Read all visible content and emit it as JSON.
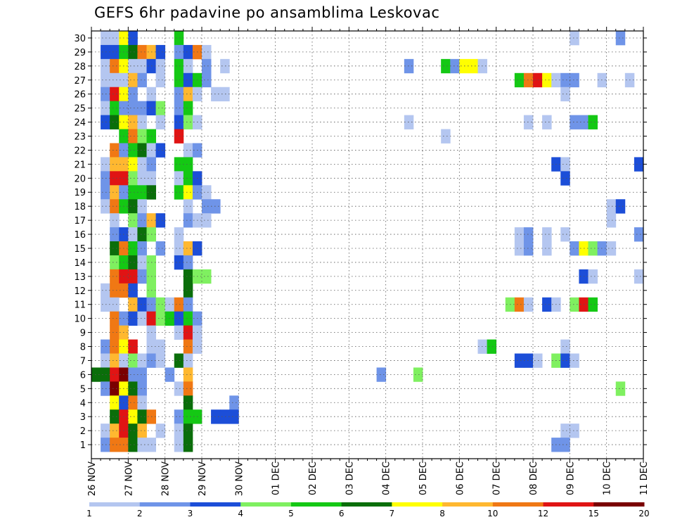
{
  "chart_data": {
    "type": "heatmap",
    "title": "GEFS 6hr padavine po ansamblima Leskovac",
    "x_tick_labels": [
      "26 NOV",
      "27 NOV",
      "28 NOV",
      "29 NOV",
      "30 NOV",
      "01 DEC",
      "02 DEC",
      "03 DEC",
      "04 DEC",
      "05 DEC",
      "06 DEC",
      "07 DEC",
      "08 DEC",
      "09 DEC",
      "10 DEC",
      "11 DEC"
    ],
    "y_tick_labels": [
      "1",
      "2",
      "3",
      "4",
      "5",
      "6",
      "7",
      "8",
      "9",
      "10",
      "11",
      "12",
      "13",
      "14",
      "15",
      "16",
      "17",
      "18",
      "19",
      "20",
      "21",
      "22",
      "23",
      "24",
      "25",
      "26",
      "27",
      "28",
      "29",
      "30"
    ],
    "x_range_steps": [
      0,
      60
    ],
    "y_range_members": [
      0,
      30
    ],
    "steps_per_day": 4,
    "color_scale": {
      "colors": [
        "#b4c6f0",
        "#6f94e8",
        "#1c4ed8",
        "#7ff060",
        "#14c814",
        "#0a6e0a",
        "#ffff00",
        "#ffb830",
        "#f07814",
        "#e01414",
        "#7a0000"
      ],
      "labels": [
        "1",
        "2",
        "3",
        "4",
        "5",
        "6",
        "7",
        "8",
        "10",
        "12",
        "15",
        "20"
      ]
    },
    "cells": [
      [
        1,
        30,
        1
      ],
      [
        2,
        30,
        1
      ],
      [
        3,
        30,
        7
      ],
      [
        4,
        30,
        3
      ],
      [
        9,
        30,
        5
      ],
      [
        52,
        30,
        1
      ],
      [
        57,
        30,
        2
      ],
      [
        1,
        29,
        3
      ],
      [
        2,
        29,
        3
      ],
      [
        3,
        29,
        5
      ],
      [
        4,
        29,
        6
      ],
      [
        5,
        29,
        9
      ],
      [
        6,
        29,
        8
      ],
      [
        7,
        29,
        3
      ],
      [
        9,
        29,
        2
      ],
      [
        10,
        29,
        3
      ],
      [
        11,
        29,
        9
      ],
      [
        12,
        29,
        1
      ],
      [
        1,
        28,
        1
      ],
      [
        2,
        28,
        9
      ],
      [
        3,
        28,
        7
      ],
      [
        4,
        28,
        1
      ],
      [
        5,
        28,
        1
      ],
      [
        6,
        28,
        3
      ],
      [
        7,
        28,
        1
      ],
      [
        9,
        28,
        5
      ],
      [
        10,
        28,
        1
      ],
      [
        12,
        28,
        2
      ],
      [
        14,
        28,
        1
      ],
      [
        34,
        28,
        2
      ],
      [
        38,
        28,
        5
      ],
      [
        39,
        28,
        2
      ],
      [
        40,
        28,
        7
      ],
      [
        41,
        28,
        7
      ],
      [
        42,
        28,
        1
      ],
      [
        1,
        27,
        1
      ],
      [
        2,
        27,
        1
      ],
      [
        3,
        27,
        1
      ],
      [
        4,
        27,
        8
      ],
      [
        5,
        27,
        2
      ],
      [
        7,
        27,
        1
      ],
      [
        9,
        27,
        5
      ],
      [
        10,
        27,
        3
      ],
      [
        11,
        27,
        5
      ],
      [
        12,
        27,
        2
      ],
      [
        46,
        27,
        5
      ],
      [
        47,
        27,
        9
      ],
      [
        48,
        27,
        10
      ],
      [
        49,
        27,
        7
      ],
      [
        50,
        27,
        1
      ],
      [
        51,
        27,
        2
      ],
      [
        52,
        27,
        2
      ],
      [
        55,
        27,
        1
      ],
      [
        58,
        27,
        1
      ],
      [
        1,
        26,
        2
      ],
      [
        2,
        26,
        10
      ],
      [
        3,
        26,
        7
      ],
      [
        4,
        26,
        2
      ],
      [
        6,
        26,
        1
      ],
      [
        9,
        26,
        2
      ],
      [
        10,
        26,
        8
      ],
      [
        11,
        26,
        1
      ],
      [
        13,
        26,
        1
      ],
      [
        14,
        26,
        1
      ],
      [
        51,
        26,
        1
      ],
      [
        1,
        25,
        1
      ],
      [
        2,
        25,
        5
      ],
      [
        3,
        25,
        2
      ],
      [
        4,
        25,
        2
      ],
      [
        5,
        25,
        2
      ],
      [
        6,
        25,
        3
      ],
      [
        7,
        25,
        4
      ],
      [
        9,
        25,
        2
      ],
      [
        10,
        25,
        5
      ],
      [
        1,
        24,
        3
      ],
      [
        2,
        24,
        6
      ],
      [
        3,
        24,
        7
      ],
      [
        4,
        24,
        8
      ],
      [
        5,
        24,
        1
      ],
      [
        7,
        24,
        1
      ],
      [
        9,
        24,
        3
      ],
      [
        10,
        24,
        4
      ],
      [
        11,
        24,
        1
      ],
      [
        34,
        24,
        1
      ],
      [
        47,
        24,
        1
      ],
      [
        49,
        24,
        1
      ],
      [
        52,
        24,
        2
      ],
      [
        53,
        24,
        2
      ],
      [
        54,
        24,
        5
      ],
      [
        3,
        23,
        5
      ],
      [
        4,
        23,
        9
      ],
      [
        5,
        23,
        4
      ],
      [
        6,
        23,
        5
      ],
      [
        9,
        23,
        10
      ],
      [
        38,
        23,
        1
      ],
      [
        2,
        22,
        9
      ],
      [
        3,
        22,
        2
      ],
      [
        4,
        22,
        5
      ],
      [
        5,
        22,
        6
      ],
      [
        6,
        22,
        1
      ],
      [
        7,
        22,
        3
      ],
      [
        10,
        22,
        1
      ],
      [
        11,
        22,
        2
      ],
      [
        1,
        21,
        1
      ],
      [
        2,
        21,
        8
      ],
      [
        3,
        21,
        8
      ],
      [
        4,
        21,
        7
      ],
      [
        5,
        21,
        1
      ],
      [
        6,
        21,
        2
      ],
      [
        9,
        21,
        5
      ],
      [
        10,
        21,
        5
      ],
      [
        50,
        21,
        3
      ],
      [
        51,
        21,
        1
      ],
      [
        59,
        21,
        3
      ],
      [
        1,
        20,
        2
      ],
      [
        2,
        20,
        10
      ],
      [
        3,
        20,
        10
      ],
      [
        4,
        20,
        4
      ],
      [
        5,
        20,
        1
      ],
      [
        6,
        20,
        1
      ],
      [
        9,
        20,
        1
      ],
      [
        10,
        20,
        5
      ],
      [
        11,
        20,
        3
      ],
      [
        51,
        20,
        3
      ],
      [
        1,
        19,
        2
      ],
      [
        2,
        19,
        8
      ],
      [
        3,
        19,
        2
      ],
      [
        4,
        19,
        5
      ],
      [
        5,
        19,
        5
      ],
      [
        6,
        19,
        6
      ],
      [
        9,
        19,
        5
      ],
      [
        10,
        19,
        7
      ],
      [
        11,
        19,
        2
      ],
      [
        12,
        19,
        1
      ],
      [
        1,
        18,
        1
      ],
      [
        2,
        18,
        9
      ],
      [
        3,
        18,
        5
      ],
      [
        4,
        18,
        6
      ],
      [
        5,
        18,
        1
      ],
      [
        10,
        18,
        1
      ],
      [
        12,
        18,
        2
      ],
      [
        13,
        18,
        2
      ],
      [
        56,
        18,
        1
      ],
      [
        57,
        18,
        3
      ],
      [
        2,
        17,
        1
      ],
      [
        4,
        17,
        4
      ],
      [
        5,
        17,
        2
      ],
      [
        6,
        17,
        8
      ],
      [
        7,
        17,
        3
      ],
      [
        10,
        17,
        2
      ],
      [
        11,
        17,
        1
      ],
      [
        12,
        17,
        1
      ],
      [
        56,
        17,
        1
      ],
      [
        2,
        16,
        2
      ],
      [
        3,
        16,
        3
      ],
      [
        4,
        16,
        1
      ],
      [
        5,
        16,
        6
      ],
      [
        6,
        16,
        4
      ],
      [
        9,
        16,
        1
      ],
      [
        46,
        16,
        1
      ],
      [
        47,
        16,
        2
      ],
      [
        49,
        16,
        1
      ],
      [
        51,
        16,
        1
      ],
      [
        59,
        16,
        2
      ],
      [
        2,
        15,
        6
      ],
      [
        3,
        15,
        9
      ],
      [
        4,
        15,
        5
      ],
      [
        5,
        15,
        2
      ],
      [
        7,
        15,
        2
      ],
      [
        9,
        15,
        1
      ],
      [
        10,
        15,
        8
      ],
      [
        11,
        15,
        3
      ],
      [
        46,
        15,
        1
      ],
      [
        47,
        15,
        2
      ],
      [
        49,
        15,
        1
      ],
      [
        52,
        15,
        2
      ],
      [
        53,
        15,
        7
      ],
      [
        54,
        15,
        4
      ],
      [
        55,
        15,
        2
      ],
      [
        56,
        15,
        1
      ],
      [
        2,
        14,
        4
      ],
      [
        3,
        14,
        5
      ],
      [
        4,
        14,
        6
      ],
      [
        5,
        14,
        1
      ],
      [
        6,
        14,
        4
      ],
      [
        9,
        14,
        3
      ],
      [
        10,
        14,
        2
      ],
      [
        2,
        13,
        9
      ],
      [
        3,
        13,
        10
      ],
      [
        4,
        13,
        10
      ],
      [
        5,
        13,
        2
      ],
      [
        6,
        13,
        4
      ],
      [
        10,
        13,
        6
      ],
      [
        11,
        13,
        4
      ],
      [
        12,
        13,
        4
      ],
      [
        53,
        13,
        3
      ],
      [
        54,
        13,
        1
      ],
      [
        59,
        13,
        1
      ],
      [
        1,
        12,
        1
      ],
      [
        2,
        12,
        9
      ],
      [
        3,
        12,
        9
      ],
      [
        4,
        12,
        3
      ],
      [
        6,
        12,
        4
      ],
      [
        10,
        12,
        6
      ],
      [
        1,
        11,
        1
      ],
      [
        2,
        11,
        1
      ],
      [
        4,
        11,
        8
      ],
      [
        5,
        11,
        3
      ],
      [
        6,
        11,
        2
      ],
      [
        7,
        11,
        4
      ],
      [
        8,
        11,
        1
      ],
      [
        9,
        11,
        9
      ],
      [
        10,
        11,
        2
      ],
      [
        45,
        11,
        4
      ],
      [
        46,
        11,
        9
      ],
      [
        47,
        11,
        1
      ],
      [
        49,
        11,
        3
      ],
      [
        50,
        11,
        1
      ],
      [
        52,
        11,
        4
      ],
      [
        53,
        11,
        10
      ],
      [
        54,
        11,
        5
      ],
      [
        2,
        10,
        9
      ],
      [
        3,
        10,
        2
      ],
      [
        4,
        10,
        3
      ],
      [
        5,
        10,
        1
      ],
      [
        6,
        10,
        10
      ],
      [
        7,
        10,
        4
      ],
      [
        8,
        10,
        5
      ],
      [
        9,
        10,
        3
      ],
      [
        10,
        10,
        5
      ],
      [
        11,
        10,
        2
      ],
      [
        2,
        9,
        9
      ],
      [
        3,
        9,
        8
      ],
      [
        6,
        9,
        1
      ],
      [
        9,
        9,
        1
      ],
      [
        10,
        9,
        10
      ],
      [
        11,
        9,
        1
      ],
      [
        1,
        8,
        2
      ],
      [
        2,
        8,
        9
      ],
      [
        3,
        8,
        7
      ],
      [
        4,
        8,
        10
      ],
      [
        6,
        8,
        1
      ],
      [
        7,
        8,
        1
      ],
      [
        10,
        8,
        9
      ],
      [
        11,
        8,
        1
      ],
      [
        42,
        8,
        1
      ],
      [
        43,
        8,
        5
      ],
      [
        51,
        8,
        1
      ],
      [
        1,
        7,
        1
      ],
      [
        2,
        7,
        8
      ],
      [
        3,
        7,
        1
      ],
      [
        4,
        7,
        4
      ],
      [
        5,
        7,
        1
      ],
      [
        6,
        7,
        2
      ],
      [
        7,
        7,
        1
      ],
      [
        9,
        7,
        6
      ],
      [
        10,
        7,
        1
      ],
      [
        46,
        7,
        3
      ],
      [
        47,
        7,
        3
      ],
      [
        48,
        7,
        1
      ],
      [
        50,
        7,
        4
      ],
      [
        51,
        7,
        3
      ],
      [
        52,
        7,
        1
      ],
      [
        0,
        6,
        6
      ],
      [
        1,
        6,
        6
      ],
      [
        2,
        6,
        10
      ],
      [
        3,
        6,
        11
      ],
      [
        4,
        6,
        2
      ],
      [
        5,
        6,
        2
      ],
      [
        8,
        6,
        2
      ],
      [
        10,
        6,
        8
      ],
      [
        31,
        6,
        2
      ],
      [
        35,
        6,
        4
      ],
      [
        1,
        5,
        2
      ],
      [
        2,
        5,
        11
      ],
      [
        3,
        5,
        7
      ],
      [
        4,
        5,
        6
      ],
      [
        5,
        5,
        2
      ],
      [
        9,
        5,
        1
      ],
      [
        10,
        5,
        9
      ],
      [
        57,
        5,
        4
      ],
      [
        2,
        4,
        7
      ],
      [
        3,
        4,
        3
      ],
      [
        4,
        4,
        9
      ],
      [
        5,
        4,
        1
      ],
      [
        10,
        4,
        6
      ],
      [
        15,
        4,
        2
      ],
      [
        2,
        3,
        6
      ],
      [
        3,
        3,
        10
      ],
      [
        4,
        3,
        7
      ],
      [
        5,
        3,
        6
      ],
      [
        6,
        3,
        9
      ],
      [
        9,
        3,
        2
      ],
      [
        10,
        3,
        5
      ],
      [
        11,
        3,
        5
      ],
      [
        13,
        3,
        3
      ],
      [
        14,
        3,
        3
      ],
      [
        15,
        3,
        3
      ],
      [
        1,
        2,
        1
      ],
      [
        2,
        2,
        8
      ],
      [
        3,
        2,
        10
      ],
      [
        4,
        2,
        6
      ],
      [
        5,
        2,
        8
      ],
      [
        7,
        2,
        1
      ],
      [
        9,
        2,
        1
      ],
      [
        10,
        2,
        6
      ],
      [
        51,
        2,
        1
      ],
      [
        52,
        2,
        1
      ],
      [
        1,
        1,
        2
      ],
      [
        2,
        1,
        9
      ],
      [
        3,
        1,
        9
      ],
      [
        4,
        1,
        6
      ],
      [
        5,
        1,
        1
      ],
      [
        6,
        1,
        1
      ],
      [
        9,
        1,
        1
      ],
      [
        10,
        1,
        6
      ],
      [
        50,
        1,
        2
      ],
      [
        51,
        1,
        2
      ]
    ]
  }
}
